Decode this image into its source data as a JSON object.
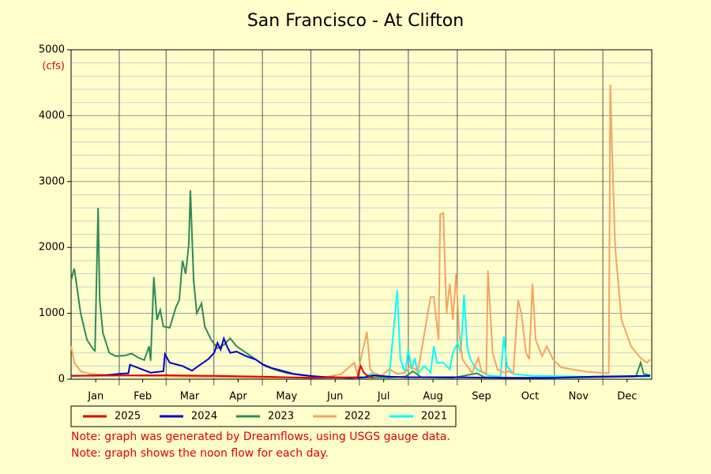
{
  "chart_data": {
    "type": "line",
    "title": "San Francisco - At Clifton",
    "y_unit": "(cfs)",
    "xlim": [
      0,
      365
    ],
    "xticks": [
      {
        "value": 15.5,
        "label": "Jan"
      },
      {
        "value": 45,
        "label": "Feb"
      },
      {
        "value": 74.5,
        "label": "Mar"
      },
      {
        "value": 105,
        "label": "Apr"
      },
      {
        "value": 135.5,
        "label": "May"
      },
      {
        "value": 166,
        "label": "Jun"
      },
      {
        "value": 196.5,
        "label": "Jul"
      },
      {
        "value": 227.5,
        "label": "Aug"
      },
      {
        "value": 258,
        "label": "Sep"
      },
      {
        "value": 288.5,
        "label": "Oct"
      },
      {
        "value": 319,
        "label": "Nov"
      },
      {
        "value": 349.5,
        "label": "Dec"
      }
    ],
    "ylim": [
      0,
      5000
    ],
    "yticks": [
      0,
      1000,
      2000,
      3000,
      4000,
      5000
    ],
    "grid": true,
    "series": [
      {
        "name": "2025",
        "color": "#e00000",
        "x": [
          0,
          30,
          60,
          90,
          120,
          150,
          180,
          182,
          184,
          186,
          190
        ],
        "values": [
          50,
          55,
          60,
          50,
          40,
          20,
          30,
          200,
          100,
          60,
          20
        ]
      },
      {
        "name": "2024",
        "color": "#0000cc",
        "x": [
          0,
          22,
          30,
          36,
          37,
          50,
          58,
          59,
          62,
          70,
          76,
          80,
          86,
          90,
          92,
          94,
          96,
          98,
          100,
          104,
          110,
          116,
          120,
          126,
          134,
          140,
          150,
          160,
          175,
          185,
          190,
          200,
          210,
          240,
          270,
          300,
          330,
          364
        ],
        "values": [
          50,
          60,
          80,
          90,
          220,
          100,
          120,
          380,
          250,
          200,
          130,
          200,
          300,
          400,
          550,
          450,
          620,
          500,
          400,
          420,
          350,
          300,
          230,
          170,
          120,
          80,
          50,
          30,
          20,
          30,
          60,
          40,
          30,
          30,
          20,
          20,
          40,
          50
        ]
      },
      {
        "name": "2023",
        "color": "#2e8b57",
        "x": [
          0,
          2,
          6,
          10,
          14,
          15,
          17,
          18,
          20,
          24,
          28,
          34,
          38,
          42,
          46,
          49,
          50,
          52,
          54,
          56,
          58,
          62,
          66,
          68,
          70,
          72,
          74,
          75,
          77,
          79,
          81,
          82,
          84,
          88,
          92,
          96,
          100,
          104,
          110,
          116,
          122,
          130,
          136,
          145,
          155,
          165,
          175,
          190,
          200,
          210,
          215,
          220,
          240,
          255,
          260,
          280,
          300,
          330,
          355,
          358,
          360,
          364
        ],
        "values": [
          1500,
          1680,
          1000,
          600,
          450,
          430,
          2600,
          1200,
          700,
          400,
          350,
          360,
          390,
          330,
          290,
          500,
          280,
          1550,
          900,
          1050,
          800,
          780,
          1100,
          1200,
          1800,
          1600,
          2050,
          2870,
          1500,
          1000,
          1100,
          1150,
          800,
          600,
          470,
          520,
          620,
          500,
          400,
          300,
          200,
          130,
          90,
          60,
          40,
          30,
          20,
          30,
          25,
          40,
          120,
          30,
          20,
          90,
          30,
          20,
          20,
          30,
          40,
          250,
          80,
          60
        ]
      },
      {
        "name": "2022",
        "color": "#f4a460",
        "x": [
          0,
          2,
          6,
          12,
          30,
          60,
          120,
          160,
          170,
          178,
          180,
          186,
          188,
          190,
          195,
          200,
          205,
          210,
          213,
          218,
          226,
          228,
          231,
          232,
          234,
          236,
          238,
          240,
          242,
          244,
          246,
          252,
          256,
          258,
          261,
          262,
          265,
          268,
          272,
          275,
          278,
          281,
          283,
          286,
          288,
          290,
          292,
          296,
          299,
          303,
          308,
          315,
          325,
          338,
          339,
          340,
          342,
          346,
          352,
          358,
          362,
          364
        ],
        "values": [
          500,
          250,
          120,
          80,
          60,
          40,
          20,
          30,
          80,
          250,
          80,
          720,
          150,
          100,
          50,
          150,
          80,
          100,
          200,
          120,
          1250,
          1250,
          600,
          2500,
          2520,
          1000,
          1450,
          900,
          1600,
          700,
          300,
          100,
          320,
          120,
          80,
          1650,
          400,
          150,
          100,
          120,
          80,
          1200,
          1000,
          400,
          300,
          1450,
          600,
          350,
          500,
          300,
          180,
          150,
          110,
          90,
          4470,
          3500,
          2000,
          900,
          500,
          320,
          250,
          300
        ]
      },
      {
        "name": "2021",
        "color": "#00ffff",
        "x": [
          185,
          190,
          195,
          200,
          205,
          207,
          210,
          212,
          214,
          216,
          218,
          222,
          226,
          228,
          230,
          234,
          238,
          240,
          243,
          245,
          247,
          249,
          251,
          255,
          262,
          270,
          272,
          274,
          278,
          290,
          320,
          364
        ],
        "values": [
          40,
          100,
          50,
          30,
          1350,
          300,
          100,
          450,
          150,
          320,
          80,
          200,
          100,
          500,
          250,
          250,
          150,
          400,
          550,
          400,
          1280,
          500,
          300,
          150,
          60,
          40,
          650,
          200,
          80,
          50,
          40,
          40
        ]
      }
    ],
    "legend": "bottom-left",
    "notes": [
      "Note: graph was generated by Dreamflows, using USGS gauge data.",
      "Note: graph shows the noon flow for each day."
    ]
  }
}
